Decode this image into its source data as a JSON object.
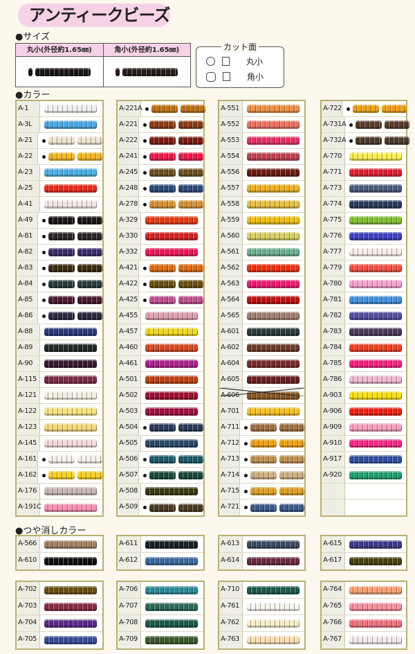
{
  "title": "アンティークビーズ",
  "size_section": {
    "heading": "●サイズ",
    "columns": [
      {
        "label": "丸小(外径約1.65㎜)",
        "color": "#1a1414"
      },
      {
        "label": "角小(外径約1.65㎜)",
        "color": "#2a1a1a"
      }
    ]
  },
  "cut_face": {
    "heading": "カット面",
    "rows": [
      {
        "label": "丸小",
        "icon": "circle-icon"
      },
      {
        "label": "角小",
        "icon": "hexagon-icon"
      }
    ]
  },
  "color_section": {
    "heading": "●カラー",
    "columns": [
      [
        {
          "code": "A-1",
          "color": "#f4f0f0"
        },
        {
          "code": "A-3L",
          "color": "#4aa8e8"
        },
        {
          "code": "A-21",
          "color": "#efe4cf",
          "dot": true
        },
        {
          "code": "A-22",
          "color": "#f2b820",
          "dot": true
        },
        {
          "code": "A-23",
          "color": "#4ab0e6"
        },
        {
          "code": "A-25",
          "color": "#ee2a1a"
        },
        {
          "code": "A-41",
          "color": "#f3e6e6"
        },
        {
          "code": "A-49",
          "color": "#1a1414",
          "dot": true
        },
        {
          "code": "A-81",
          "color": "#2a2428",
          "dot": true
        },
        {
          "code": "A-82",
          "color": "#3a2a6a",
          "dot": true
        },
        {
          "code": "A-83",
          "color": "#3a2a10",
          "dot": true
        },
        {
          "code": "A-84",
          "color": "#2a3a3a",
          "dot": true
        },
        {
          "code": "A-85",
          "color": "#4a1830",
          "dot": true
        },
        {
          "code": "A-86",
          "color": "#2a2a40",
          "dot": true
        },
        {
          "code": "A-88",
          "color": "#2a3a7a"
        },
        {
          "code": "A-89",
          "color": "#1e2a24"
        },
        {
          "code": "A-90",
          "color": "#3a1830"
        },
        {
          "code": "A-115",
          "color": "#7a2a44"
        },
        {
          "code": "A-121",
          "color": "#f6f0e4"
        },
        {
          "code": "A-122",
          "color": "#f8e480"
        },
        {
          "code": "A-123",
          "color": "#f8d878"
        },
        {
          "code": "A-145",
          "color": "#f8d8d8"
        },
        {
          "code": "A-161",
          "color": "#f6f0ec",
          "dot": true
        },
        {
          "code": "A-162",
          "color": "#f8d020",
          "dot": true
        },
        {
          "code": "A-176",
          "color": "#cab8b0"
        },
        {
          "code": "A-191C",
          "color": "#f890b0"
        }
      ],
      [
        {
          "code": "A-221A",
          "color": "#c07010",
          "dot": true
        },
        {
          "code": "A-221",
          "color": "#8a3a10",
          "dot": true
        },
        {
          "code": "A-222",
          "color": "#7a1a10",
          "dot": true
        },
        {
          "code": "A-241",
          "color": "#f01848",
          "dot": true
        },
        {
          "code": "A-245",
          "color": "#6a5020",
          "dot": true
        },
        {
          "code": "A-248",
          "color": "#2a4a7a",
          "dot": true
        },
        {
          "code": "A-278",
          "color": "#d89030",
          "dot": true
        },
        {
          "code": "A-329",
          "color": "#e83a10"
        },
        {
          "code": "A-330",
          "color": "#d82020"
        },
        {
          "code": "A-332",
          "color": "#f01858"
        },
        {
          "code": "A-421",
          "color": "#e06a10",
          "dot": true
        },
        {
          "code": "A-422",
          "color": "#6a5010",
          "dot": true
        },
        {
          "code": "A-425",
          "color": "#c05090",
          "dot": true
        },
        {
          "code": "A-455",
          "color": "#e0a0b0"
        },
        {
          "code": "A-457",
          "color": "#f0d820"
        },
        {
          "code": "A-460",
          "color": "#d84a20"
        },
        {
          "code": "A-461",
          "color": "#b02090"
        },
        {
          "code": "A-501",
          "color": "#c04010"
        },
        {
          "code": "A-502",
          "color": "#a01030"
        },
        {
          "code": "A-503",
          "color": "#a01040"
        },
        {
          "code": "A-504",
          "color": "#2a3a5a",
          "dot": true
        },
        {
          "code": "A-505",
          "color": "#2a4a6a"
        },
        {
          "code": "A-506",
          "color": "#1a5a6a",
          "dot": true
        },
        {
          "code": "A-507",
          "color": "#1a4a3a",
          "dot": true
        },
        {
          "code": "A-508",
          "color": "#3a3a10"
        },
        {
          "code": "A-509",
          "color": "#4a3a20",
          "dot": true
        }
      ],
      [
        {
          "code": "A-551",
          "color": "#f09040"
        },
        {
          "code": "A-552",
          "color": "#f07060"
        },
        {
          "code": "A-553",
          "color": "#e83060"
        },
        {
          "code": "A-554",
          "color": "#c04050"
        },
        {
          "code": "A-556",
          "color": "#6a1a10"
        },
        {
          "code": "A-557",
          "color": "#f0b020"
        },
        {
          "code": "A-558",
          "color": "#e8c040"
        },
        {
          "code": "A-559",
          "color": "#f0c010"
        },
        {
          "code": "A-560",
          "color": "#d8d060"
        },
        {
          "code": "A-561",
          "color": "#6ab090"
        },
        {
          "code": "A-562",
          "color": "#f03010"
        },
        {
          "code": "A-563",
          "color": "#f01870"
        },
        {
          "code": "A-564",
          "color": "#c01010"
        },
        {
          "code": "A-565",
          "color": "#a08070"
        },
        {
          "code": "A-601",
          "color": "#2a3a3a"
        },
        {
          "code": "A-602",
          "color": "#6a3a2a"
        },
        {
          "code": "A-604",
          "color": "#7a2a2a"
        },
        {
          "code": "A-605",
          "color": "#6a2020"
        },
        {
          "code": "A-606",
          "color": "#8a5a20",
          "discontinued": true
        },
        {
          "code": "A-701",
          "color": "#f8c020"
        },
        {
          "code": "A-711",
          "color": "#a07040",
          "dot": true
        },
        {
          "code": "A-712",
          "color": "#f0a010",
          "dot": true
        },
        {
          "code": "A-713",
          "color": "#c09050",
          "dot": true
        },
        {
          "code": "A-714",
          "color": "#d0b080",
          "dot": true
        },
        {
          "code": "A-715",
          "color": "#e0a020",
          "dot": true
        },
        {
          "code": "A-721",
          "color": "#3a5a8a",
          "dot": true
        }
      ],
      [
        {
          "code": "A-722",
          "color": "#f0a010",
          "dot": true
        },
        {
          "code": "A-731A",
          "color": "#5a3a2a",
          "dot": true
        },
        {
          "code": "A-732A",
          "color": "#4a3a2a",
          "dot": true
        },
        {
          "code": "A-770",
          "color": "#f8f050"
        },
        {
          "code": "A-771",
          "color": "#e02030"
        },
        {
          "code": "A-773",
          "color": "#4a5a7a"
        },
        {
          "code": "A-774",
          "color": "#2a3a5a"
        },
        {
          "code": "A-775",
          "color": "#80c030"
        },
        {
          "code": "A-776",
          "color": "#4040c0"
        },
        {
          "code": "A-777",
          "color": "#f8ece4"
        },
        {
          "code": "A-779",
          "color": "#f85040"
        },
        {
          "code": "A-780",
          "color": "#f8a0d0"
        },
        {
          "code": "A-781",
          "color": "#4090e0"
        },
        {
          "code": "A-782",
          "color": "#5050a0"
        },
        {
          "code": "A-783",
          "color": "#4a3a5a"
        },
        {
          "code": "A-784",
          "color": "#f04020"
        },
        {
          "code": "A-785",
          "color": "#f82080"
        },
        {
          "code": "A-786",
          "color": "#f0b8d0"
        },
        {
          "code": "A-903",
          "color": "#f8e010"
        },
        {
          "code": "A-906",
          "color": "#f02010"
        },
        {
          "code": "A-909",
          "color": "#f8a0c0"
        },
        {
          "code": "A-910",
          "color": "#f82888"
        },
        {
          "code": "A-917",
          "color": "#3050a0"
        },
        {
          "code": "A-920",
          "color": "#20a070"
        },
        {
          "code": ""
        },
        {
          "code": ""
        }
      ]
    ]
  },
  "matte_section": {
    "heading": "●つや消しカラー",
    "groups": [
      [
        {
          "code": "A-566",
          "color": "#a08060"
        },
        {
          "code": "A-610",
          "color": "#101010"
        }
      ],
      [
        {
          "code": "A-611",
          "color": "#1a2028"
        },
        {
          "code": "A-612",
          "color": "#3a6aa0"
        }
      ],
      [
        {
          "code": "A-613",
          "color": "#3a4a60"
        },
        {
          "code": "A-614",
          "color": "#6a2a40"
        }
      ],
      [
        {
          "code": "A-615",
          "color": "#3a3a8a"
        },
        {
          "code": "A-617",
          "color": "#4a4010"
        }
      ],
      [
        {
          "code": "A-702",
          "color": "#6a5010"
        },
        {
          "code": "A-703",
          "color": "#8a2a40"
        },
        {
          "code": "A-704",
          "color": "#5a2a8a"
        },
        {
          "code": "A-705",
          "color": "#3a4a9a"
        }
      ],
      [
        {
          "code": "A-706",
          "color": "#2a8a9a"
        },
        {
          "code": "A-707",
          "color": "#2a6a5a"
        },
        {
          "code": "A-708",
          "color": "#1a5a4a"
        },
        {
          "code": "A-709",
          "color": "#3a5a2a"
        }
      ],
      [
        {
          "code": "A-710",
          "color": "#1a5a4a"
        },
        {
          "code": "A-761",
          "color": "#f8f4ee"
        },
        {
          "code": "A-762",
          "color": "#f8ecc8"
        },
        {
          "code": "A-763",
          "color": "#f8e0b0"
        }
      ],
      [
        {
          "code": "A-764",
          "color": "#f8a070"
        },
        {
          "code": "A-765",
          "color": "#f890a0"
        },
        {
          "code": "A-766",
          "color": "#f07080"
        },
        {
          "code": "A-767",
          "color": "#f6e8ee"
        }
      ]
    ]
  }
}
